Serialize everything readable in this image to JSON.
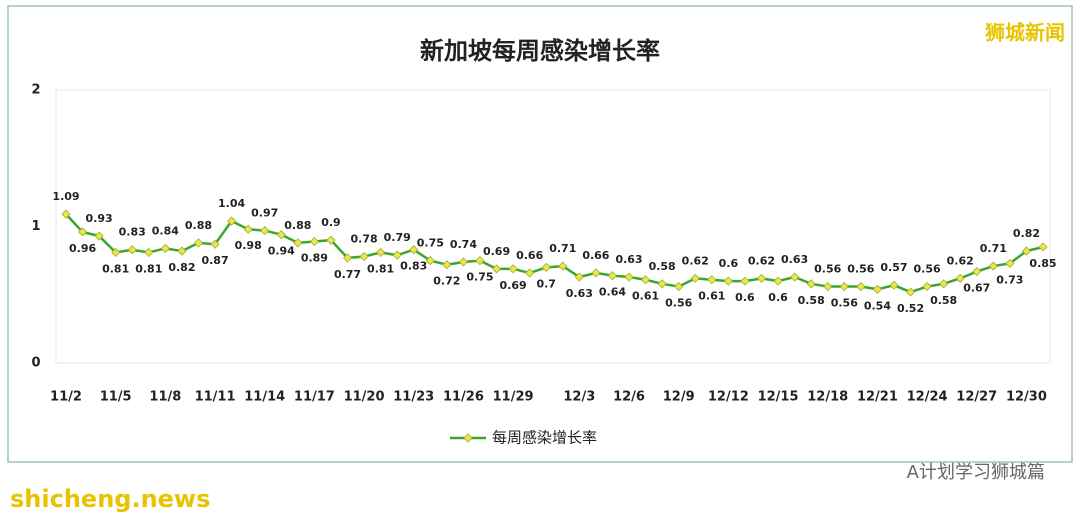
{
  "chart_data": {
    "type": "line",
    "title": "新加坡每周感染增长率",
    "watermark_top": "狮城新闻",
    "watermark_bottom_right": "A计划学习狮城篇",
    "watermark_bottom_left": "shicheng.news",
    "categories": [
      "11/2",
      null,
      null,
      "11/5",
      null,
      null,
      "11/8",
      null,
      null,
      "11/11",
      null,
      null,
      "11/14",
      null,
      null,
      "11/17",
      null,
      null,
      "11/20",
      null,
      null,
      "11/23",
      null,
      null,
      "11/26",
      null,
      null,
      "11/29",
      null,
      null,
      null,
      "12/3",
      null,
      null,
      "12/6",
      null,
      null,
      "12/9",
      null,
      null,
      "12/12",
      null,
      null,
      "12/15",
      null,
      null,
      "12/18",
      null,
      null,
      "12/21",
      null,
      null,
      "12/24",
      null,
      null,
      "12/27",
      null,
      null,
      "12/30",
      null
    ],
    "series": [
      {
        "name": "每周感染增长率",
        "color": "#3aa52f",
        "marker_color": "#e8e84a",
        "values": [
          1.09,
          0.96,
          0.93,
          0.81,
          0.83,
          0.81,
          0.84,
          0.82,
          0.88,
          0.87,
          1.04,
          0.98,
          0.97,
          0.94,
          0.88,
          0.89,
          0.9,
          0.77,
          0.78,
          0.81,
          0.79,
          0.83,
          0.75,
          0.72,
          0.74,
          0.75,
          0.69,
          0.69,
          0.66,
          0.7,
          0.71,
          0.63,
          0.66,
          0.64,
          0.63,
          0.61,
          0.58,
          0.56,
          0.62,
          0.61,
          0.6,
          0.6,
          0.62,
          0.6,
          0.63,
          0.58,
          0.56,
          0.56,
          0.56,
          0.54,
          0.57,
          0.52,
          0.56,
          0.58,
          0.62,
          0.67,
          0.71,
          0.73,
          0.82,
          0.85
        ]
      }
    ],
    "ylim": [
      0,
      2
    ],
    "yticks": [
      0,
      1,
      2
    ],
    "grid": false,
    "legend": "bottom"
  }
}
